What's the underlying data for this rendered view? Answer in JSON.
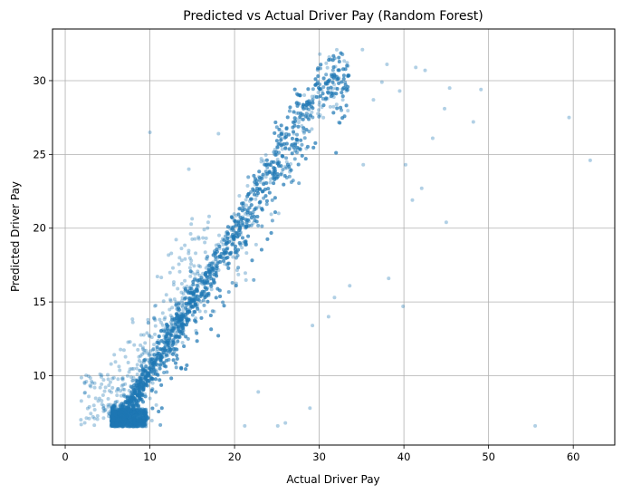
{
  "chart_data": {
    "type": "scatter",
    "title": "Predicted vs Actual Driver Pay (Random Forest)",
    "xlabel": "Actual Driver Pay",
    "ylabel": "Predicted Driver Pay",
    "xlim": [
      -1.5,
      64.9
    ],
    "ylim": [
      5.3,
      33.5
    ],
    "xticks": [
      "0",
      "10",
      "20",
      "30",
      "40",
      "50",
      "60"
    ],
    "yticks": [
      "10",
      "15",
      "20",
      "25",
      "30"
    ],
    "xtick_values": [
      0,
      10,
      20,
      30,
      40,
      50,
      60
    ],
    "ytick_values": [
      10,
      15,
      20,
      25,
      30
    ],
    "grid": true,
    "point_color": "#1f77b4",
    "point_alpha": 0.35,
    "series": [
      {
        "points": [
          [
            55.5,
            6.6
          ],
          [
            62.0,
            24.6
          ],
          [
            59.5,
            27.5
          ],
          [
            48.2,
            27.2
          ],
          [
            49.1,
            29.4
          ],
          [
            45.4,
            29.5
          ],
          [
            44.8,
            28.1
          ],
          [
            45.0,
            20.4
          ],
          [
            42.1,
            22.7
          ],
          [
            43.4,
            26.1
          ],
          [
            41.0,
            21.9
          ],
          [
            39.9,
            14.7
          ],
          [
            40.2,
            24.3
          ],
          [
            38.2,
            16.6
          ],
          [
            41.4,
            30.9
          ],
          [
            42.5,
            30.7
          ],
          [
            10.0,
            26.5
          ],
          [
            18.1,
            26.4
          ],
          [
            14.6,
            24.0
          ],
          [
            28.9,
            7.8
          ],
          [
            31.1,
            14.0
          ],
          [
            26.0,
            6.8
          ],
          [
            25.1,
            6.6
          ],
          [
            21.2,
            6.6
          ],
          [
            22.8,
            8.9
          ],
          [
            35.1,
            32.1
          ],
          [
            38.0,
            31.1
          ],
          [
            33.4,
            31.0
          ],
          [
            37.4,
            29.9
          ],
          [
            36.4,
            28.7
          ],
          [
            33.6,
            16.1
          ],
          [
            29.2,
            13.4
          ],
          [
            31.8,
            15.3
          ],
          [
            39.5,
            29.3
          ],
          [
            35.2,
            24.3
          ]
        ]
      }
    ]
  }
}
